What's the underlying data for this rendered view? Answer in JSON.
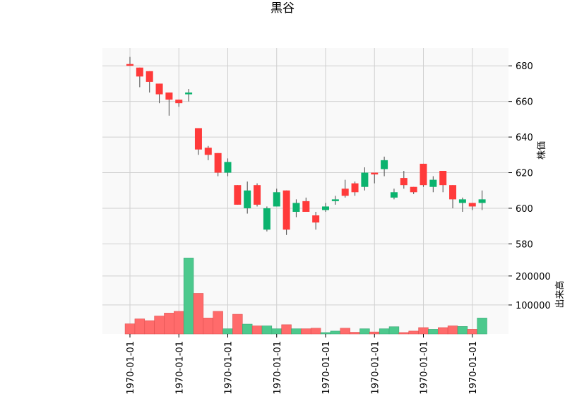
{
  "chart_data": {
    "type": "candlestick",
    "title": "黒谷",
    "price_panel": {
      "ylabel": "株価",
      "ylim": [
        575,
        690
      ],
      "yticks": [
        580,
        600,
        620,
        640,
        660,
        680
      ],
      "ytick_labels": [
        "580",
        "600",
        "620",
        "640",
        "660",
        "680"
      ]
    },
    "volume_panel": {
      "ylabel": "出来高",
      "ylim": [
        0,
        280000
      ],
      "yticks": [
        100000,
        200000
      ],
      "ytick_labels": [
        "100000",
        "200000"
      ]
    },
    "x_tick_labels": [
      "1970-01-01",
      "1970-01-01",
      "1970-01-01",
      "1970-01-01",
      "1970-01-01",
      "1970-01-01",
      "1970-01-01",
      "1970-01-01"
    ],
    "x_tick_positions": [
      0,
      5,
      10,
      15,
      20,
      25,
      30,
      35
    ],
    "grid": true,
    "colors": {
      "up": "#ff3a3a",
      "down": "#0bb36e",
      "volume_up": "#ff6b6b",
      "volume_down": "#4cc98d",
      "wick": "#555555"
    },
    "candles": [
      {
        "open": 680,
        "high": 685,
        "low": 680,
        "close": 681,
        "volume": 35000
      },
      {
        "open": 674,
        "high": 679,
        "low": 668,
        "close": 679,
        "volume": 52000
      },
      {
        "open": 671,
        "high": 677,
        "low": 665,
        "close": 677,
        "volume": 46000
      },
      {
        "open": 664,
        "high": 670,
        "low": 659,
        "close": 670,
        "volume": 62000
      },
      {
        "open": 661,
        "high": 665,
        "low": 652,
        "close": 665,
        "volume": 72000
      },
      {
        "open": 659,
        "high": 661,
        "low": 657,
        "close": 661,
        "volume": 78000
      },
      {
        "open": 665,
        "high": 667,
        "low": 660,
        "close": 664,
        "volume": 262000
      },
      {
        "open": 633,
        "high": 645,
        "low": 630,
        "close": 645,
        "volume": 140000
      },
      {
        "open": 630,
        "high": 635,
        "low": 627,
        "close": 634,
        "volume": 55000
      },
      {
        "open": 620,
        "high": 631,
        "low": 618,
        "close": 631,
        "volume": 78000
      },
      {
        "open": 626,
        "high": 628,
        "low": 618,
        "close": 620,
        "volume": 18000
      },
      {
        "open": 602,
        "high": 613,
        "low": 602,
        "close": 613,
        "volume": 68000
      },
      {
        "open": 610,
        "high": 615,
        "low": 597,
        "close": 600,
        "volume": 34000
      },
      {
        "open": 602,
        "high": 614,
        "low": 601,
        "close": 613,
        "volume": 28000
      },
      {
        "open": 600,
        "high": 601,
        "low": 587,
        "close": 588,
        "volume": 28000
      },
      {
        "open": 609,
        "high": 611,
        "low": 601,
        "close": 601,
        "volume": 18000
      },
      {
        "open": 588,
        "high": 610,
        "low": 585,
        "close": 610,
        "volume": 32000
      },
      {
        "open": 603,
        "high": 605,
        "low": 595,
        "close": 598,
        "volume": 18000
      },
      {
        "open": 598,
        "high": 606,
        "low": 598,
        "close": 604,
        "volume": 18000
      },
      {
        "open": 592,
        "high": 598,
        "low": 588,
        "close": 596,
        "volume": 20000
      },
      {
        "open": 601,
        "high": 603,
        "low": 598,
        "close": 599,
        "volume": 5000
      },
      {
        "open": 605,
        "high": 607,
        "low": 602,
        "close": 604,
        "volume": 10000
      },
      {
        "open": 607,
        "high": 616,
        "low": 606,
        "close": 611,
        "volume": 20000
      },
      {
        "open": 609,
        "high": 615,
        "low": 607,
        "close": 614,
        "volume": 6000
      },
      {
        "open": 620,
        "high": 623,
        "low": 610,
        "close": 612,
        "volume": 18000
      },
      {
        "open": 619,
        "high": 620,
        "low": 614,
        "close": 620,
        "volume": 7000
      },
      {
        "open": 627,
        "high": 629,
        "low": 618,
        "close": 622,
        "volume": 18000
      },
      {
        "open": 609,
        "high": 611,
        "low": 605,
        "close": 606,
        "volume": 25000
      },
      {
        "open": 613,
        "high": 621,
        "low": 611,
        "close": 617,
        "volume": 5000
      },
      {
        "open": 609,
        "high": 612,
        "low": 608,
        "close": 612,
        "volume": 10000
      },
      {
        "open": 613,
        "high": 625,
        "low": 612,
        "close": 625,
        "volume": 22000
      },
      {
        "open": 616,
        "high": 618,
        "low": 609,
        "close": 612,
        "volume": 16000
      },
      {
        "open": 613,
        "high": 621,
        "low": 609,
        "close": 621,
        "volume": 22000
      },
      {
        "open": 605,
        "high": 613,
        "low": 600,
        "close": 613,
        "volume": 28000
      },
      {
        "open": 605,
        "high": 606,
        "low": 598,
        "close": 603,
        "volume": 26000
      },
      {
        "open": 601,
        "high": 603,
        "low": 599,
        "close": 603,
        "volume": 16000
      },
      {
        "open": 605,
        "high": 610,
        "low": 599,
        "close": 603,
        "volume": 55000
      }
    ]
  }
}
